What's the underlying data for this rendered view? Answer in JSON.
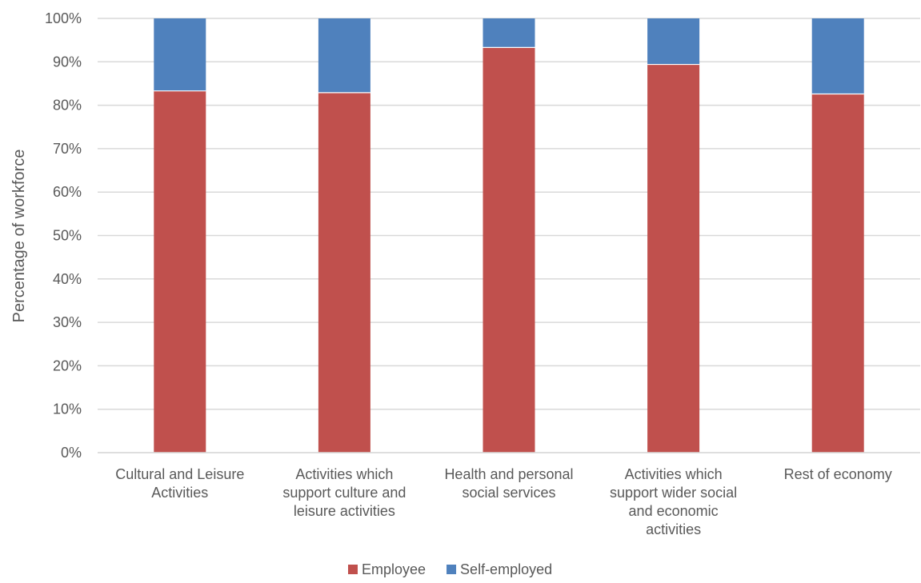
{
  "chart_data": {
    "type": "bar",
    "stacked": true,
    "categories": [
      [
        "Cultural and Leisure",
        "Activities"
      ],
      [
        "Activities which",
        "support culture and",
        "leisure activities"
      ],
      [
        "Health and personal",
        "social services"
      ],
      [
        "Activities which",
        "support wider social",
        "and economic",
        "activities"
      ],
      [
        "Rest of economy"
      ]
    ],
    "series": [
      {
        "name": "Employee",
        "color": "#c0504d",
        "values": [
          83.3,
          82.9,
          93.3,
          89.4,
          82.6
        ]
      },
      {
        "name": "Self-employed",
        "color": "#4f81bd",
        "values": [
          16.7,
          17.1,
          6.7,
          10.6,
          17.4
        ]
      }
    ],
    "title": "",
    "xlabel": "",
    "ylabel": "Percentage of workforce",
    "ylim": [
      0,
      100
    ],
    "yticks": [
      "0%",
      "10%",
      "20%",
      "30%",
      "40%",
      "50%",
      "60%",
      "70%",
      "80%",
      "90%",
      "100%"
    ],
    "grid": true,
    "legend_position": "bottom"
  }
}
